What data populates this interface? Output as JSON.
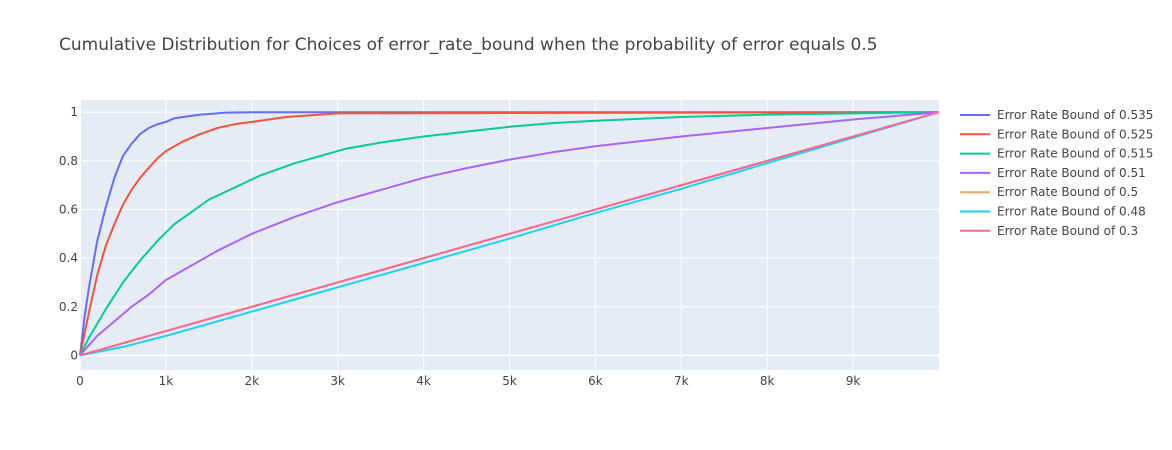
{
  "chart_data": {
    "type": "line",
    "title": "Cumulative Distribution for Choices of error_rate_bound when the probability of error equals 0.5",
    "xlabel": "",
    "ylabel": "",
    "xlim": [
      0,
      10000
    ],
    "ylim": [
      -0.06,
      1.05
    ],
    "x_ticks": [
      {
        "value": 0,
        "label": "0"
      },
      {
        "value": 1000,
        "label": "1k"
      },
      {
        "value": 2000,
        "label": "2k"
      },
      {
        "value": 3000,
        "label": "3k"
      },
      {
        "value": 4000,
        "label": "4k"
      },
      {
        "value": 5000,
        "label": "5k"
      },
      {
        "value": 6000,
        "label": "6k"
      },
      {
        "value": 7000,
        "label": "7k"
      },
      {
        "value": 8000,
        "label": "8k"
      },
      {
        "value": 9000,
        "label": "9k"
      }
    ],
    "y_ticks": [
      {
        "value": 0,
        "label": "0"
      },
      {
        "value": 0.2,
        "label": "0.2"
      },
      {
        "value": 0.4,
        "label": "0.4"
      },
      {
        "value": 0.6,
        "label": "0.6"
      },
      {
        "value": 0.8,
        "label": "0.8"
      },
      {
        "value": 1,
        "label": "1"
      }
    ],
    "grid": true,
    "legend_position": "right",
    "plot_background": "#e5ecf6",
    "series": [
      {
        "name": "Error Rate Bound of 0.535",
        "color": "#636efa",
        "x": [
          0,
          50,
          100,
          200,
          300,
          400,
          500,
          600,
          700,
          800,
          900,
          1000,
          1100,
          1200,
          1400,
          1700,
          2000,
          3000,
          10000
        ],
        "y": [
          0,
          0.15,
          0.27,
          0.47,
          0.61,
          0.73,
          0.82,
          0.87,
          0.91,
          0.935,
          0.95,
          0.96,
          0.975,
          0.98,
          0.99,
          0.998,
          1,
          1,
          1
        ]
      },
      {
        "name": "Error Rate Bound of 0.525",
        "color": "#ef553b",
        "x": [
          0,
          100,
          200,
          300,
          400,
          500,
          600,
          700,
          800,
          900,
          1000,
          1200,
          1400,
          1600,
          1800,
          2000,
          2400,
          2800,
          3000,
          10000
        ],
        "y": [
          0,
          0.17,
          0.33,
          0.45,
          0.54,
          0.62,
          0.68,
          0.73,
          0.77,
          0.81,
          0.84,
          0.88,
          0.91,
          0.935,
          0.95,
          0.96,
          0.98,
          0.99,
          0.995,
          1
        ]
      },
      {
        "name": "Error Rate Bound of 0.515",
        "color": "#00cc96",
        "x": [
          0,
          100,
          300,
          500,
          700,
          900,
          1100,
          1300,
          1500,
          1800,
          2100,
          2500,
          2800,
          3100,
          3500,
          4000,
          4500,
          5000,
          5500,
          6000,
          7000,
          8000,
          9000,
          10000
        ],
        "y": [
          0,
          0.07,
          0.19,
          0.3,
          0.39,
          0.47,
          0.54,
          0.59,
          0.64,
          0.69,
          0.74,
          0.79,
          0.82,
          0.85,
          0.875,
          0.9,
          0.92,
          0.94,
          0.955,
          0.965,
          0.98,
          0.99,
          0.995,
          1
        ]
      },
      {
        "name": "Error Rate Bound of 0.51",
        "color": "#ab63fa",
        "x": [
          0,
          200,
          400,
          600,
          800,
          1000,
          1300,
          1600,
          2000,
          2500,
          3000,
          3500,
          4000,
          4500,
          5000,
          5500,
          6000,
          7000,
          8000,
          9000,
          10000
        ],
        "y": [
          0,
          0.08,
          0.14,
          0.2,
          0.25,
          0.31,
          0.37,
          0.43,
          0.5,
          0.57,
          0.63,
          0.68,
          0.73,
          0.77,
          0.805,
          0.835,
          0.86,
          0.9,
          0.935,
          0.97,
          1
        ]
      },
      {
        "name": "Error Rate Bound of 0.5",
        "color": "#ffa15a",
        "x": [
          0,
          2500,
          5000,
          7500,
          10000
        ],
        "y": [
          0,
          0.25,
          0.5,
          0.75,
          1
        ]
      },
      {
        "name": "Error Rate Bound of 0.48",
        "color": "#19d3f3",
        "x": [
          0,
          500,
          1000,
          1500,
          2000,
          2500,
          3000,
          4000,
          5000,
          6000,
          7000,
          8000,
          9000,
          10000
        ],
        "y": [
          0,
          0.035,
          0.08,
          0.13,
          0.18,
          0.23,
          0.28,
          0.38,
          0.48,
          0.585,
          0.685,
          0.79,
          0.895,
          1
        ]
      },
      {
        "name": "Error Rate Bound of 0.3",
        "color": "#ff6692",
        "x": [
          0,
          2500,
          5000,
          7500,
          10000
        ],
        "y": [
          0,
          0.25,
          0.5,
          0.75,
          1
        ]
      }
    ]
  }
}
